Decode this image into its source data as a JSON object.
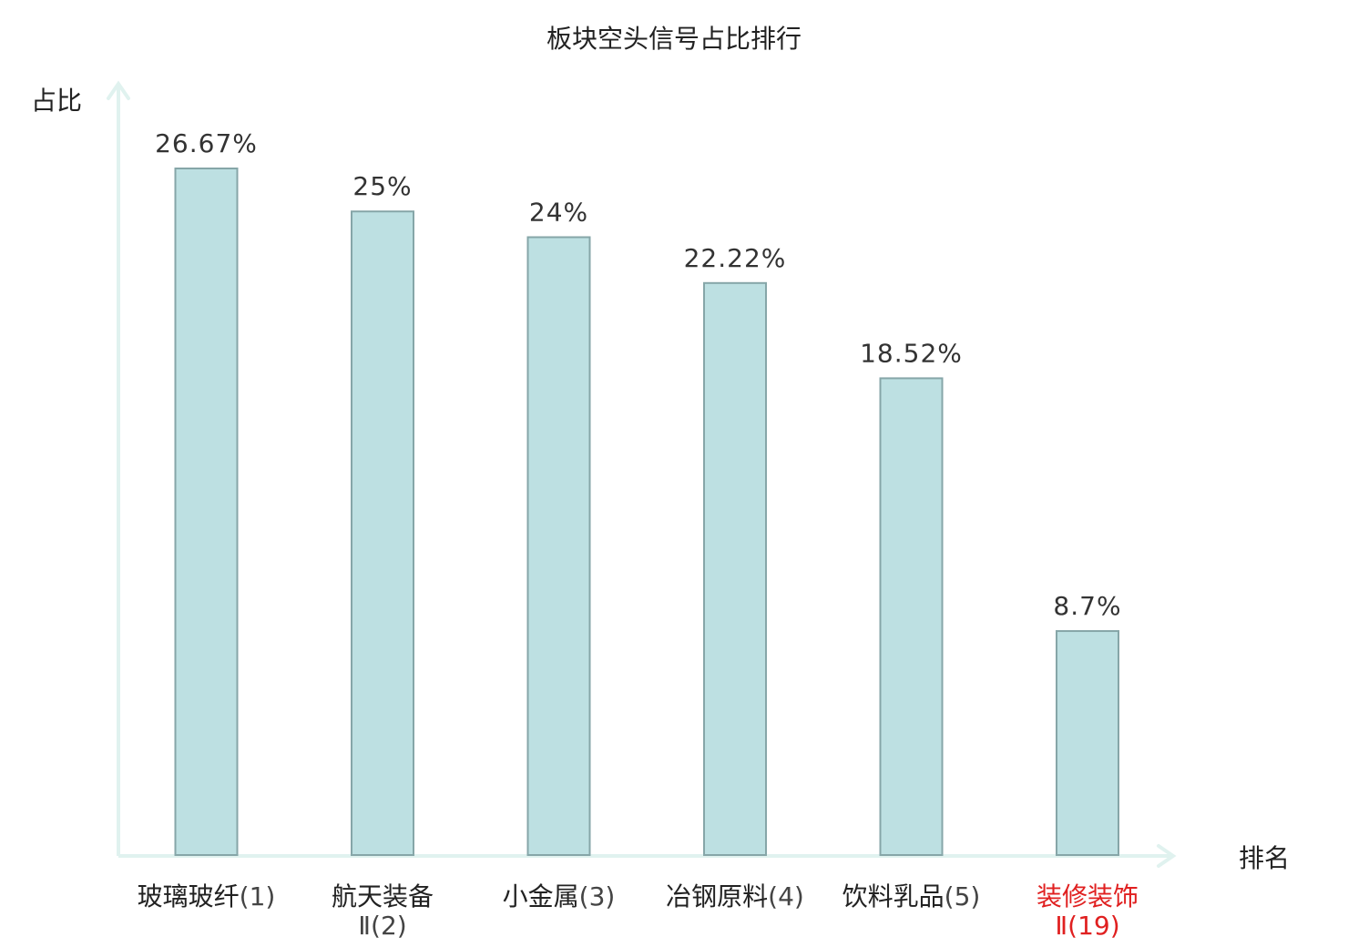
{
  "chart_data": {
    "type": "bar",
    "title": "板块空头信号占比排行",
    "ylabel": "占比",
    "xlabel": "排名",
    "categories": [
      {
        "line1": "玻璃玻纤",
        "line2": "",
        "rank": "(1)",
        "highlight": false
      },
      {
        "line1": "航天装备",
        "line2": "Ⅱ",
        "rank": "(2)",
        "highlight": false
      },
      {
        "line1": "小金属",
        "line2": "",
        "rank": "(3)",
        "highlight": false
      },
      {
        "line1": "冶钢原料",
        "line2": "",
        "rank": "(4)",
        "highlight": false
      },
      {
        "line1": "饮料乳品",
        "line2": "",
        "rank": "(5)",
        "highlight": false
      },
      {
        "line1": "装修装饰",
        "line2": "Ⅱ",
        "rank": "(19)",
        "highlight": true
      }
    ],
    "values": [
      26.67,
      25,
      24,
      22.22,
      18.52,
      8.7
    ],
    "value_labels": [
      "26.67%",
      "25%",
      "24%",
      "22.22%",
      "18.52%",
      "8.7%"
    ],
    "ylim": [
      0,
      26.67
    ],
    "grid": false,
    "colors": {
      "bar_fill": "#bde0e2",
      "bar_stroke": "#86a6a8",
      "axis": "#e0f2ef",
      "highlight_text": "#e02020"
    }
  }
}
